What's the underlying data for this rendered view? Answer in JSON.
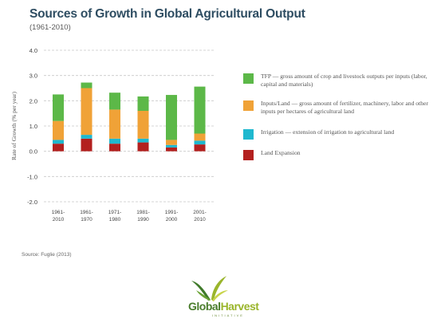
{
  "header": {
    "title": "Sources of Growth in Global Agricultural Output",
    "subtitle": "(1961-2010)"
  },
  "source": "Source: Fuglie (2013)",
  "logo": {
    "line1": "Global",
    "line2": "Harvest",
    "tagline": "INITIATIVE"
  },
  "colors": {
    "tfp": "#5cb848",
    "inputs": "#f0a237",
    "irrigation": "#1fb8cf",
    "land": "#b3201f"
  },
  "chart_data": {
    "type": "bar",
    "stacked": true,
    "ylabel": "Rate of Growth (% per year)",
    "ylim": [
      -2.0,
      4.0
    ],
    "yticks": [
      "4.0",
      "3.0",
      "2.0",
      "1.0",
      "0.0",
      "-1.0",
      "-2.0"
    ],
    "grid": true,
    "legend_position": "right",
    "categories": [
      [
        "1961-",
        "2010"
      ],
      [
        "1961-",
        "1970"
      ],
      [
        "1971-",
        "1980"
      ],
      [
        "1981-",
        "1990"
      ],
      [
        "1991-",
        "2000"
      ],
      [
        "2001-",
        "2010"
      ]
    ],
    "series": [
      {
        "key": "land",
        "name": "Land Expansion",
        "values": [
          0.3,
          0.5,
          0.3,
          0.35,
          0.15,
          0.27
        ]
      },
      {
        "key": "irrigation",
        "name": "Irrigation — extension of irrigation to agricultural land",
        "values": [
          0.15,
          0.15,
          0.2,
          0.15,
          0.1,
          0.15
        ]
      },
      {
        "key": "inputs",
        "name": "Inputs/Land — gross amount of fertilizer, machinery, labor and other inputs per hectares of agricultural land",
        "values": [
          0.75,
          1.85,
          1.15,
          1.1,
          0.2,
          0.28
        ]
      },
      {
        "key": "tfp",
        "name": "TFP — gross amount of crop and livestock outputs per inputs (labor, capital and materials)",
        "values": [
          1.05,
          0.22,
          0.67,
          0.57,
          1.78,
          1.86
        ]
      }
    ]
  },
  "legend": [
    {
      "key": "tfp",
      "text": "TFP — gross amount of crop and livestock outputs per inputs (labor, capital and materials)"
    },
    {
      "key": "inputs",
      "text": "Inputs/Land — gross amount of fertilizer, machinery, labor and other inputs per hectares of agricultural land"
    },
    {
      "key": "irrigation",
      "text": "Irrigation — extension of irrigation to agricultural land"
    },
    {
      "key": "land",
      "text": "Land Expansion"
    }
  ]
}
